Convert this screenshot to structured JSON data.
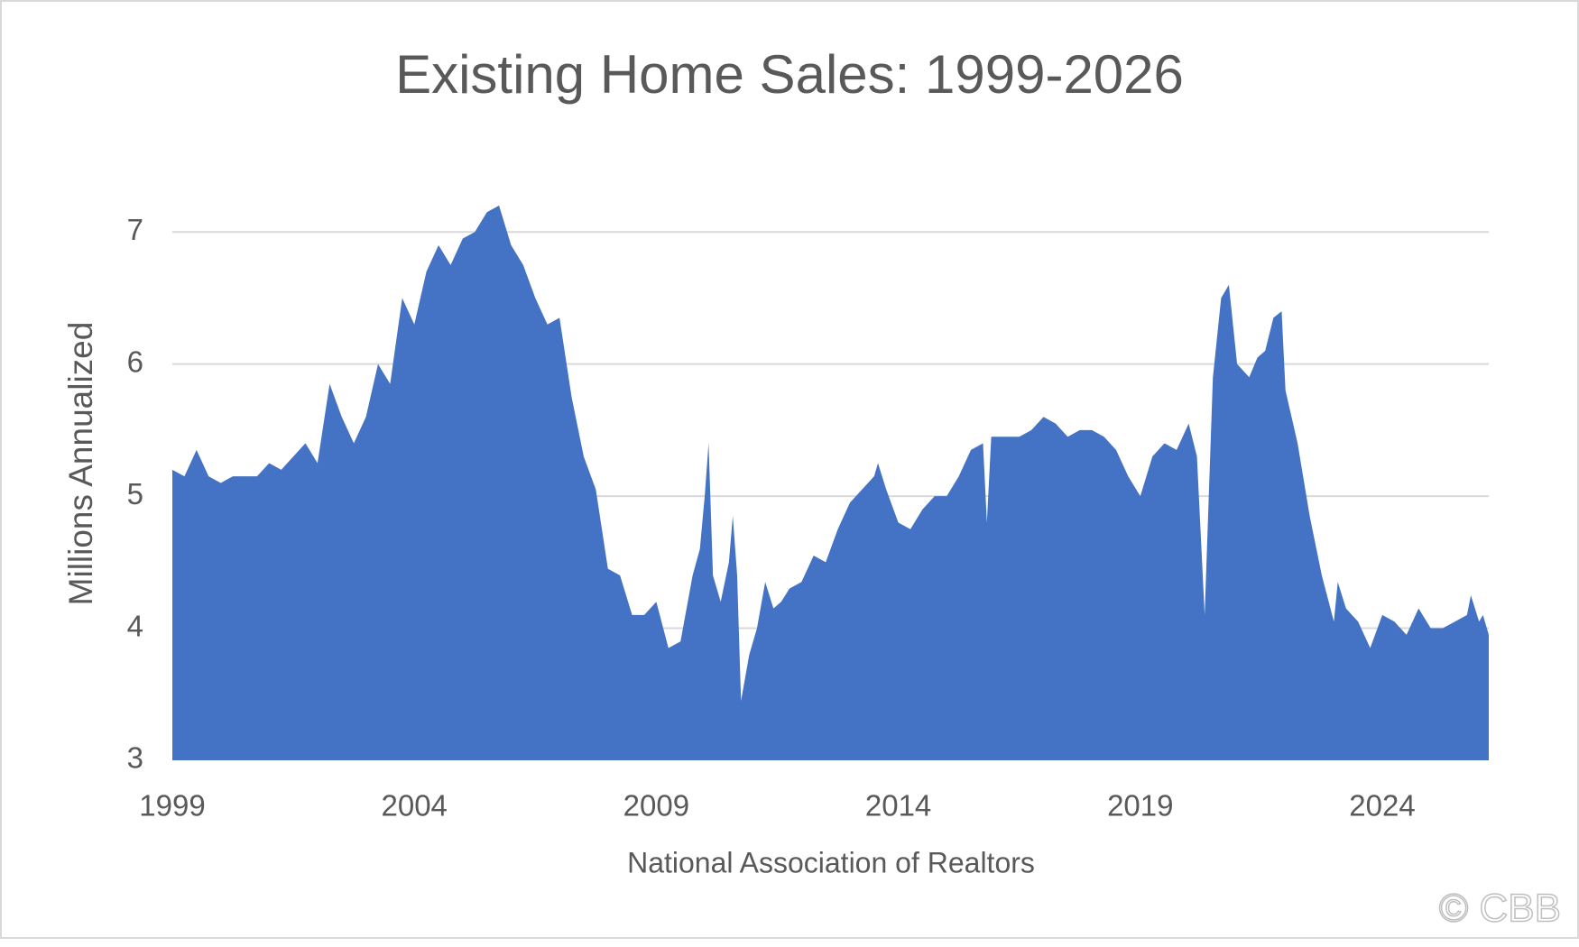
{
  "chart_data": {
    "type": "area",
    "title": "Existing Home Sales: 1999-2026",
    "y_label": "Millions Annualized",
    "x_label": "National Association of Realtors",
    "annotation": "© CBB",
    "color": "#4472c4",
    "grid": true,
    "xlim": [
      1999,
      2026.2
    ],
    "ylim": [
      3,
      7.5
    ],
    "xticks": [
      1999,
      2004,
      2009,
      2014,
      2019,
      2024
    ],
    "yticks": [
      3,
      4,
      5,
      6,
      7
    ],
    "x": [
      1999,
      1999.25,
      1999.5,
      1999.75,
      2000,
      2000.25,
      2000.5,
      2000.75,
      2001,
      2001.25,
      2001.5,
      2001.75,
      2002,
      2002.25,
      2002.5,
      2002.75,
      2003,
      2003.25,
      2003.5,
      2003.75,
      2004,
      2004.25,
      2004.5,
      2004.75,
      2005,
      2005.25,
      2005.5,
      2005.75,
      2006,
      2006.25,
      2006.5,
      2006.75,
      2007,
      2007.25,
      2007.5,
      2007.75,
      2008,
      2008.25,
      2008.5,
      2008.75,
      2009,
      2009.25,
      2009.5,
      2009.75,
      2009.9,
      2010,
      2010.08,
      2010.17,
      2010.33,
      2010.5,
      2010.58,
      2010.67,
      2010.75,
      2010.92,
      2011.08,
      2011.25,
      2011.42,
      2011.58,
      2011.75,
      2012,
      2012.25,
      2012.5,
      2012.75,
      2013,
      2013.25,
      2013.5,
      2013.58,
      2013.75,
      2014,
      2014.25,
      2014.5,
      2014.75,
      2015,
      2015.25,
      2015.5,
      2015.75,
      2015.83,
      2015.92,
      2016.25,
      2016.5,
      2016.75,
      2017,
      2017.25,
      2017.5,
      2017.75,
      2018,
      2018.25,
      2018.5,
      2018.75,
      2019,
      2019.25,
      2019.5,
      2019.75,
      2020,
      2020.17,
      2020.33,
      2020.5,
      2020.67,
      2020.83,
      2021,
      2021.25,
      2021.42,
      2021.58,
      2021.75,
      2021.92,
      2022,
      2022.25,
      2022.5,
      2022.75,
      2023,
      2023.08,
      2023.25,
      2023.5,
      2023.75,
      2024,
      2024.25,
      2024.5,
      2024.75,
      2025,
      2025.25,
      2025.5,
      2025.75,
      2025.83,
      2026,
      2026.08,
      2026.2
    ],
    "values": [
      5.2,
      5.15,
      5.35,
      5.15,
      5.1,
      5.15,
      5.15,
      5.15,
      5.25,
      5.2,
      5.3,
      5.4,
      5.25,
      5.85,
      5.6,
      5.4,
      5.6,
      6.0,
      5.85,
      6.5,
      6.3,
      6.7,
      6.9,
      6.75,
      6.95,
      7.0,
      7.15,
      7.2,
      6.9,
      6.75,
      6.5,
      6.3,
      6.35,
      5.75,
      5.3,
      5.05,
      4.45,
      4.4,
      4.1,
      4.1,
      4.2,
      3.85,
      3.9,
      4.4,
      4.6,
      5.0,
      5.4,
      4.4,
      4.2,
      4.5,
      4.85,
      4.4,
      3.45,
      3.8,
      4.0,
      4.35,
      4.15,
      4.2,
      4.3,
      4.35,
      4.55,
      4.5,
      4.75,
      4.95,
      5.05,
      5.15,
      5.25,
      5.05,
      4.8,
      4.75,
      4.9,
      5.0,
      5.0,
      5.15,
      5.35,
      5.4,
      4.8,
      5.45,
      5.45,
      5.45,
      5.5,
      5.6,
      5.55,
      5.45,
      5.5,
      5.5,
      5.45,
      5.35,
      5.15,
      5.0,
      5.3,
      5.4,
      5.35,
      5.55,
      5.3,
      4.1,
      5.9,
      6.5,
      6.6,
      6.0,
      5.9,
      6.05,
      6.1,
      6.35,
      6.4,
      5.8,
      5.4,
      4.85,
      4.4,
      4.05,
      4.35,
      4.15,
      4.05,
      3.85,
      4.1,
      4.05,
      3.95,
      4.15,
      4.0,
      4.0,
      4.05,
      4.1,
      4.25,
      4.05,
      4.1,
      3.95
    ]
  }
}
